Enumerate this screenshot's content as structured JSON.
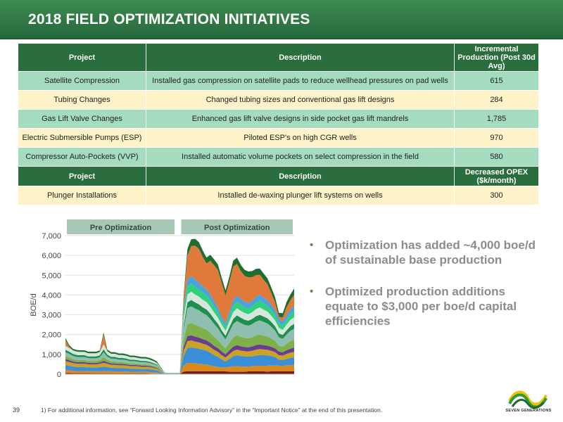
{
  "header": {
    "title": "2018 FIELD OPTIMIZATION INITIATIVES"
  },
  "table": {
    "headers": [
      "Project",
      "Description",
      "Incremental Production (Post 30d Avg)"
    ],
    "rows": [
      {
        "project": "Satellite Compression",
        "description": "Installed gas compression on satellite pads to reduce wellhead pressures on pad wells",
        "value": "615"
      },
      {
        "project": "Tubing Changes",
        "description": "Changed tubing sizes and conventional gas lift designs",
        "value": "284"
      },
      {
        "project": "Gas Lift Valve Changes",
        "description": "Enhanced gas lift valve designs in side pocket gas lift mandrels",
        "value": "1,785"
      },
      {
        "project": "Electric Submersible Pumps (ESP)",
        "description": "Piloted ESP's on high CGR wells",
        "value": "970"
      },
      {
        "project": "Compressor Auto-Pockets (VVP)",
        "description": "Installed automatic volume pockets on select compression in the field",
        "value": "580"
      }
    ],
    "headers2": [
      "Project",
      "Description",
      "Decreased OPEX ($k/month)"
    ],
    "rows2": [
      {
        "project": "Plunger Installations",
        "description": "Installed de-waxing plunger lift systems on wells",
        "value": "300"
      }
    ]
  },
  "chart_data": {
    "type": "area",
    "stacked": true,
    "ylabel": "BOE/d",
    "xlabel": "",
    "ylim": [
      0,
      7000
    ],
    "yticks": [
      "0",
      "1,000",
      "2,000",
      "3,000",
      "4,000",
      "5,000",
      "6,000",
      "7,000"
    ],
    "grid": true,
    "x": [
      0,
      1,
      2,
      3,
      4,
      5,
      6,
      7,
      8,
      9,
      10,
      11,
      12,
      13,
      14,
      15,
      16,
      17,
      18,
      19,
      20,
      21,
      22,
      23,
      24,
      25,
      26,
      27,
      28,
      29,
      30,
      31,
      32,
      33,
      34,
      35,
      36,
      37,
      38,
      39,
      40,
      41,
      42,
      43,
      44,
      45,
      46,
      47,
      48,
      49,
      50,
      51,
      52,
      53,
      54,
      55,
      56,
      57,
      58,
      59,
      60
    ],
    "period_labels": [
      {
        "label": "Pre Optimization",
        "from": 0,
        "to": 29
      },
      {
        "label": "Post Optimization",
        "from": 30,
        "to": 60
      }
    ],
    "series": [
      {
        "color": "#7a1e1e",
        "values": [
          60,
          55,
          50,
          50,
          48,
          48,
          48,
          45,
          45,
          45,
          45,
          45,
          45,
          40,
          40,
          40,
          38,
          36,
          36,
          36,
          35,
          34,
          30,
          25,
          20,
          10,
          5,
          5,
          5,
          5,
          5,
          130,
          150,
          150,
          150,
          150,
          140,
          140,
          140,
          140,
          140,
          140,
          140,
          120,
          120,
          120,
          120,
          120,
          140,
          140,
          140,
          140,
          140,
          130,
          140,
          140,
          140,
          140,
          140,
          140,
          140
        ]
      },
      {
        "color": "#d88a1e",
        "values": [
          150,
          140,
          120,
          110,
          110,
          110,
          100,
          100,
          100,
          110,
          120,
          110,
          100,
          100,
          100,
          100,
          100,
          90,
          90,
          90,
          80,
          80,
          80,
          70,
          60,
          30,
          10,
          10,
          10,
          10,
          10,
          300,
          420,
          420,
          400,
          380,
          360,
          350,
          300,
          260,
          230,
          200,
          200,
          250,
          280,
          290,
          270,
          260,
          250,
          260,
          280,
          290,
          270,
          300,
          300,
          300,
          290,
          280,
          300,
          320,
          330
        ]
      },
      {
        "color": "#3a8fd8",
        "values": [
          250,
          230,
          210,
          200,
          200,
          200,
          190,
          190,
          190,
          200,
          210,
          200,
          180,
          180,
          170,
          170,
          160,
          150,
          150,
          150,
          140,
          140,
          140,
          130,
          110,
          60,
          10,
          10,
          10,
          10,
          10,
          500,
          750,
          780,
          770,
          760,
          740,
          700,
          650,
          560,
          500,
          400,
          300,
          400,
          500,
          550,
          530,
          520,
          500,
          500,
          520,
          540,
          550,
          520,
          480,
          420,
          300,
          300,
          330,
          360,
          380
        ]
      },
      {
        "color": "#c9a226",
        "values": [
          200,
          190,
          180,
          170,
          170,
          170,
          160,
          160,
          160,
          170,
          200,
          170,
          150,
          150,
          140,
          140,
          140,
          130,
          130,
          120,
          120,
          120,
          110,
          100,
          90,
          50,
          10,
          5,
          5,
          5,
          5,
          250,
          350,
          350,
          330,
          320,
          300,
          300,
          280,
          270,
          260,
          220,
          200,
          240,
          270,
          280,
          270,
          260,
          260,
          280,
          300,
          300,
          290,
          280,
          260,
          250,
          230,
          220,
          250,
          270,
          280
        ]
      },
      {
        "color": "#6a3d8f",
        "values": [
          100,
          90,
          80,
          80,
          75,
          75,
          70,
          70,
          70,
          70,
          100,
          80,
          70,
          70,
          65,
          65,
          60,
          60,
          60,
          55,
          55,
          55,
          50,
          45,
          40,
          20,
          5,
          5,
          5,
          5,
          5,
          200,
          260,
          260,
          250,
          240,
          230,
          220,
          220,
          200,
          190,
          180,
          170,
          200,
          220,
          230,
          220,
          210,
          210,
          220,
          230,
          230,
          220,
          210,
          200,
          190,
          180,
          170,
          190,
          200,
          210
        ]
      },
      {
        "color": "#7fb04a",
        "values": [
          150,
          140,
          120,
          110,
          110,
          110,
          100,
          100,
          100,
          110,
          180,
          120,
          100,
          100,
          90,
          90,
          90,
          80,
          80,
          80,
          70,
          70,
          70,
          60,
          50,
          30,
          10,
          5,
          5,
          5,
          5,
          400,
          600,
          620,
          600,
          580,
          560,
          540,
          500,
          460,
          400,
          350,
          300,
          380,
          460,
          500,
          480,
          460,
          450,
          470,
          490,
          500,
          480,
          460,
          420,
          380,
          300,
          280,
          330,
          380,
          400
        ]
      },
      {
        "color": "#8fbfb0",
        "values": [
          200,
          180,
          160,
          150,
          150,
          150,
          140,
          140,
          140,
          150,
          250,
          160,
          140,
          140,
          130,
          130,
          120,
          110,
          110,
          100,
          100,
          100,
          90,
          80,
          70,
          40,
          10,
          5,
          5,
          5,
          5,
          500,
          800,
          850,
          820,
          800,
          760,
          740,
          700,
          650,
          600,
          520,
          450,
          560,
          680,
          720,
          690,
          660,
          640,
          660,
          700,
          720,
          690,
          660,
          600,
          520,
          420,
          400,
          460,
          520,
          560
        ]
      },
      {
        "color": "#1f8f4e",
        "values": [
          120,
          110,
          100,
          100,
          95,
          95,
          90,
          90,
          90,
          95,
          150,
          100,
          90,
          90,
          85,
          85,
          80,
          75,
          75,
          70,
          70,
          70,
          65,
          60,
          50,
          30,
          10,
          5,
          5,
          5,
          5,
          200,
          300,
          320,
          310,
          300,
          290,
          280,
          270,
          250,
          230,
          200,
          180,
          220,
          260,
          280,
          270,
          260,
          250,
          260,
          270,
          280,
          270,
          260,
          240,
          220,
          200,
          190,
          210,
          230,
          240
        ]
      },
      {
        "color": "#d5e6dd",
        "values": [
          200,
          190,
          180,
          170,
          170,
          170,
          160,
          160,
          160,
          170,
          250,
          170,
          160,
          160,
          150,
          150,
          140,
          130,
          130,
          120,
          120,
          120,
          110,
          100,
          80,
          40,
          10,
          5,
          5,
          5,
          5,
          300,
          400,
          420,
          400,
          390,
          380,
          370,
          350,
          330,
          300,
          280,
          260,
          300,
          340,
          360,
          350,
          340,
          330,
          340,
          360,
          370,
          350,
          340,
          320,
          300,
          280,
          260,
          290,
          320,
          340
        ]
      },
      {
        "color": "#2fd27a",
        "values": [
          0,
          0,
          0,
          0,
          0,
          0,
          0,
          0,
          0,
          0,
          0,
          0,
          0,
          0,
          0,
          0,
          0,
          0,
          0,
          0,
          0,
          0,
          0,
          0,
          0,
          0,
          0,
          0,
          0,
          0,
          0,
          300,
          400,
          420,
          400,
          380,
          360,
          340,
          320,
          300,
          260,
          220,
          200,
          260,
          320,
          340,
          320,
          300,
          290,
          300,
          320,
          340,
          320,
          300,
          280,
          260,
          240,
          220,
          250,
          280,
          300
        ]
      },
      {
        "color": "#4aa3e0",
        "values": [
          0,
          0,
          0,
          0,
          0,
          0,
          0,
          0,
          0,
          0,
          0,
          0,
          0,
          0,
          0,
          0,
          0,
          0,
          0,
          0,
          0,
          0,
          0,
          0,
          0,
          0,
          0,
          0,
          0,
          0,
          0,
          250,
          350,
          380,
          360,
          340,
          320,
          310,
          300,
          280,
          250,
          200,
          180,
          230,
          280,
          300,
          290,
          280,
          270,
          280,
          300,
          310,
          290,
          280,
          260,
          240,
          220,
          200,
          230,
          260,
          280
        ]
      },
      {
        "color": "#e07a3a",
        "values": [
          300,
          50,
          0,
          0,
          0,
          0,
          0,
          0,
          0,
          0,
          500,
          0,
          0,
          0,
          0,
          0,
          0,
          0,
          0,
          0,
          0,
          0,
          0,
          0,
          0,
          0,
          0,
          0,
          0,
          0,
          0,
          400,
          1200,
          1500,
          1700,
          1700,
          1500,
          1300,
          1700,
          1800,
          1900,
          1700,
          1400,
          1500,
          1700,
          1600,
          1400,
          1300,
          1300,
          1200,
          1100,
          1000,
          900,
          800,
          600,
          400,
          100,
          200,
          400,
          450,
          550
        ]
      },
      {
        "color": "#1f6e2e",
        "values": [
          100,
          90,
          80,
          80,
          80,
          80,
          80,
          80,
          80,
          80,
          100,
          80,
          80,
          80,
          80,
          80,
          80,
          80,
          80,
          80,
          80,
          80,
          80,
          80,
          70,
          40,
          10,
          5,
          5,
          5,
          5,
          200,
          350,
          350,
          350,
          330,
          320,
          300,
          300,
          300,
          280,
          260,
          250,
          270,
          300,
          320,
          310,
          300,
          300,
          300,
          310,
          320,
          310,
          300,
          280,
          260,
          200,
          220,
          260,
          290,
          320
        ]
      }
    ]
  },
  "bullets": [
    "Optimization has added ~4,000 boe/d of sustainable base production",
    "Optimized production additions equate to $3,000 per boe/d capital efficiencies"
  ],
  "footer": {
    "page": "39",
    "note": "1)   For additional information, see “Forward Looking Information Advisory” in the “Important Notice” at the end of this presentation."
  },
  "logo": {
    "text": "SEVEN GENERATIONS"
  },
  "colors": {
    "brand_green": "#25693a",
    "header_row": "#2b6e3d",
    "row_green": "#a5dcc0",
    "row_cream": "#fdf2c8"
  }
}
